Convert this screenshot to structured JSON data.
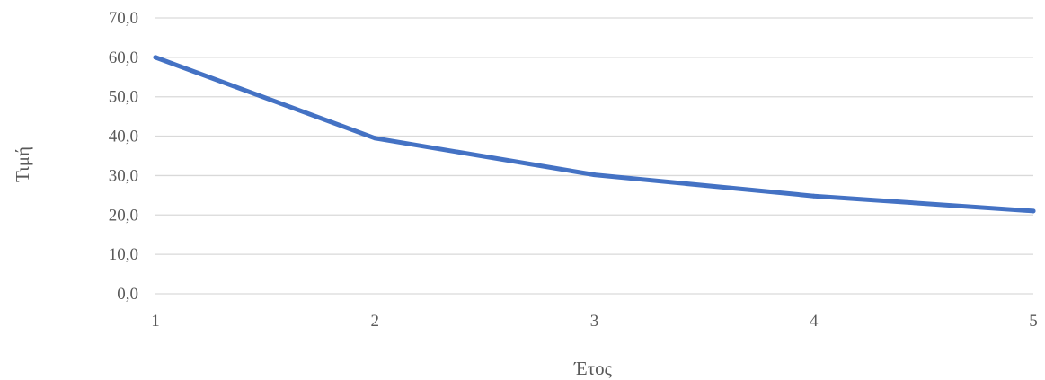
{
  "chart_data": {
    "type": "line",
    "title": "",
    "xlabel": "Έτος",
    "ylabel": "Τιμή",
    "x": [
      1,
      2,
      3,
      4,
      5
    ],
    "x_tick_labels": [
      "1",
      "2",
      "3",
      "4",
      "5"
    ],
    "series": [
      {
        "values": [
          60.0,
          39.5,
          30.2,
          24.8,
          21.0
        ],
        "color": "#4472C4"
      }
    ],
    "ylim": [
      0,
      70
    ],
    "y_ticks": [
      0,
      10,
      20,
      30,
      40,
      50,
      60,
      70
    ],
    "y_tick_labels": [
      "0,0",
      "10,0",
      "20,0",
      "30,0",
      "40,0",
      "50,0",
      "60,0",
      "70,0"
    ],
    "grid": true,
    "legend": "none",
    "colors": {
      "gridline": "#D9D9D9",
      "text": "#595959"
    }
  }
}
